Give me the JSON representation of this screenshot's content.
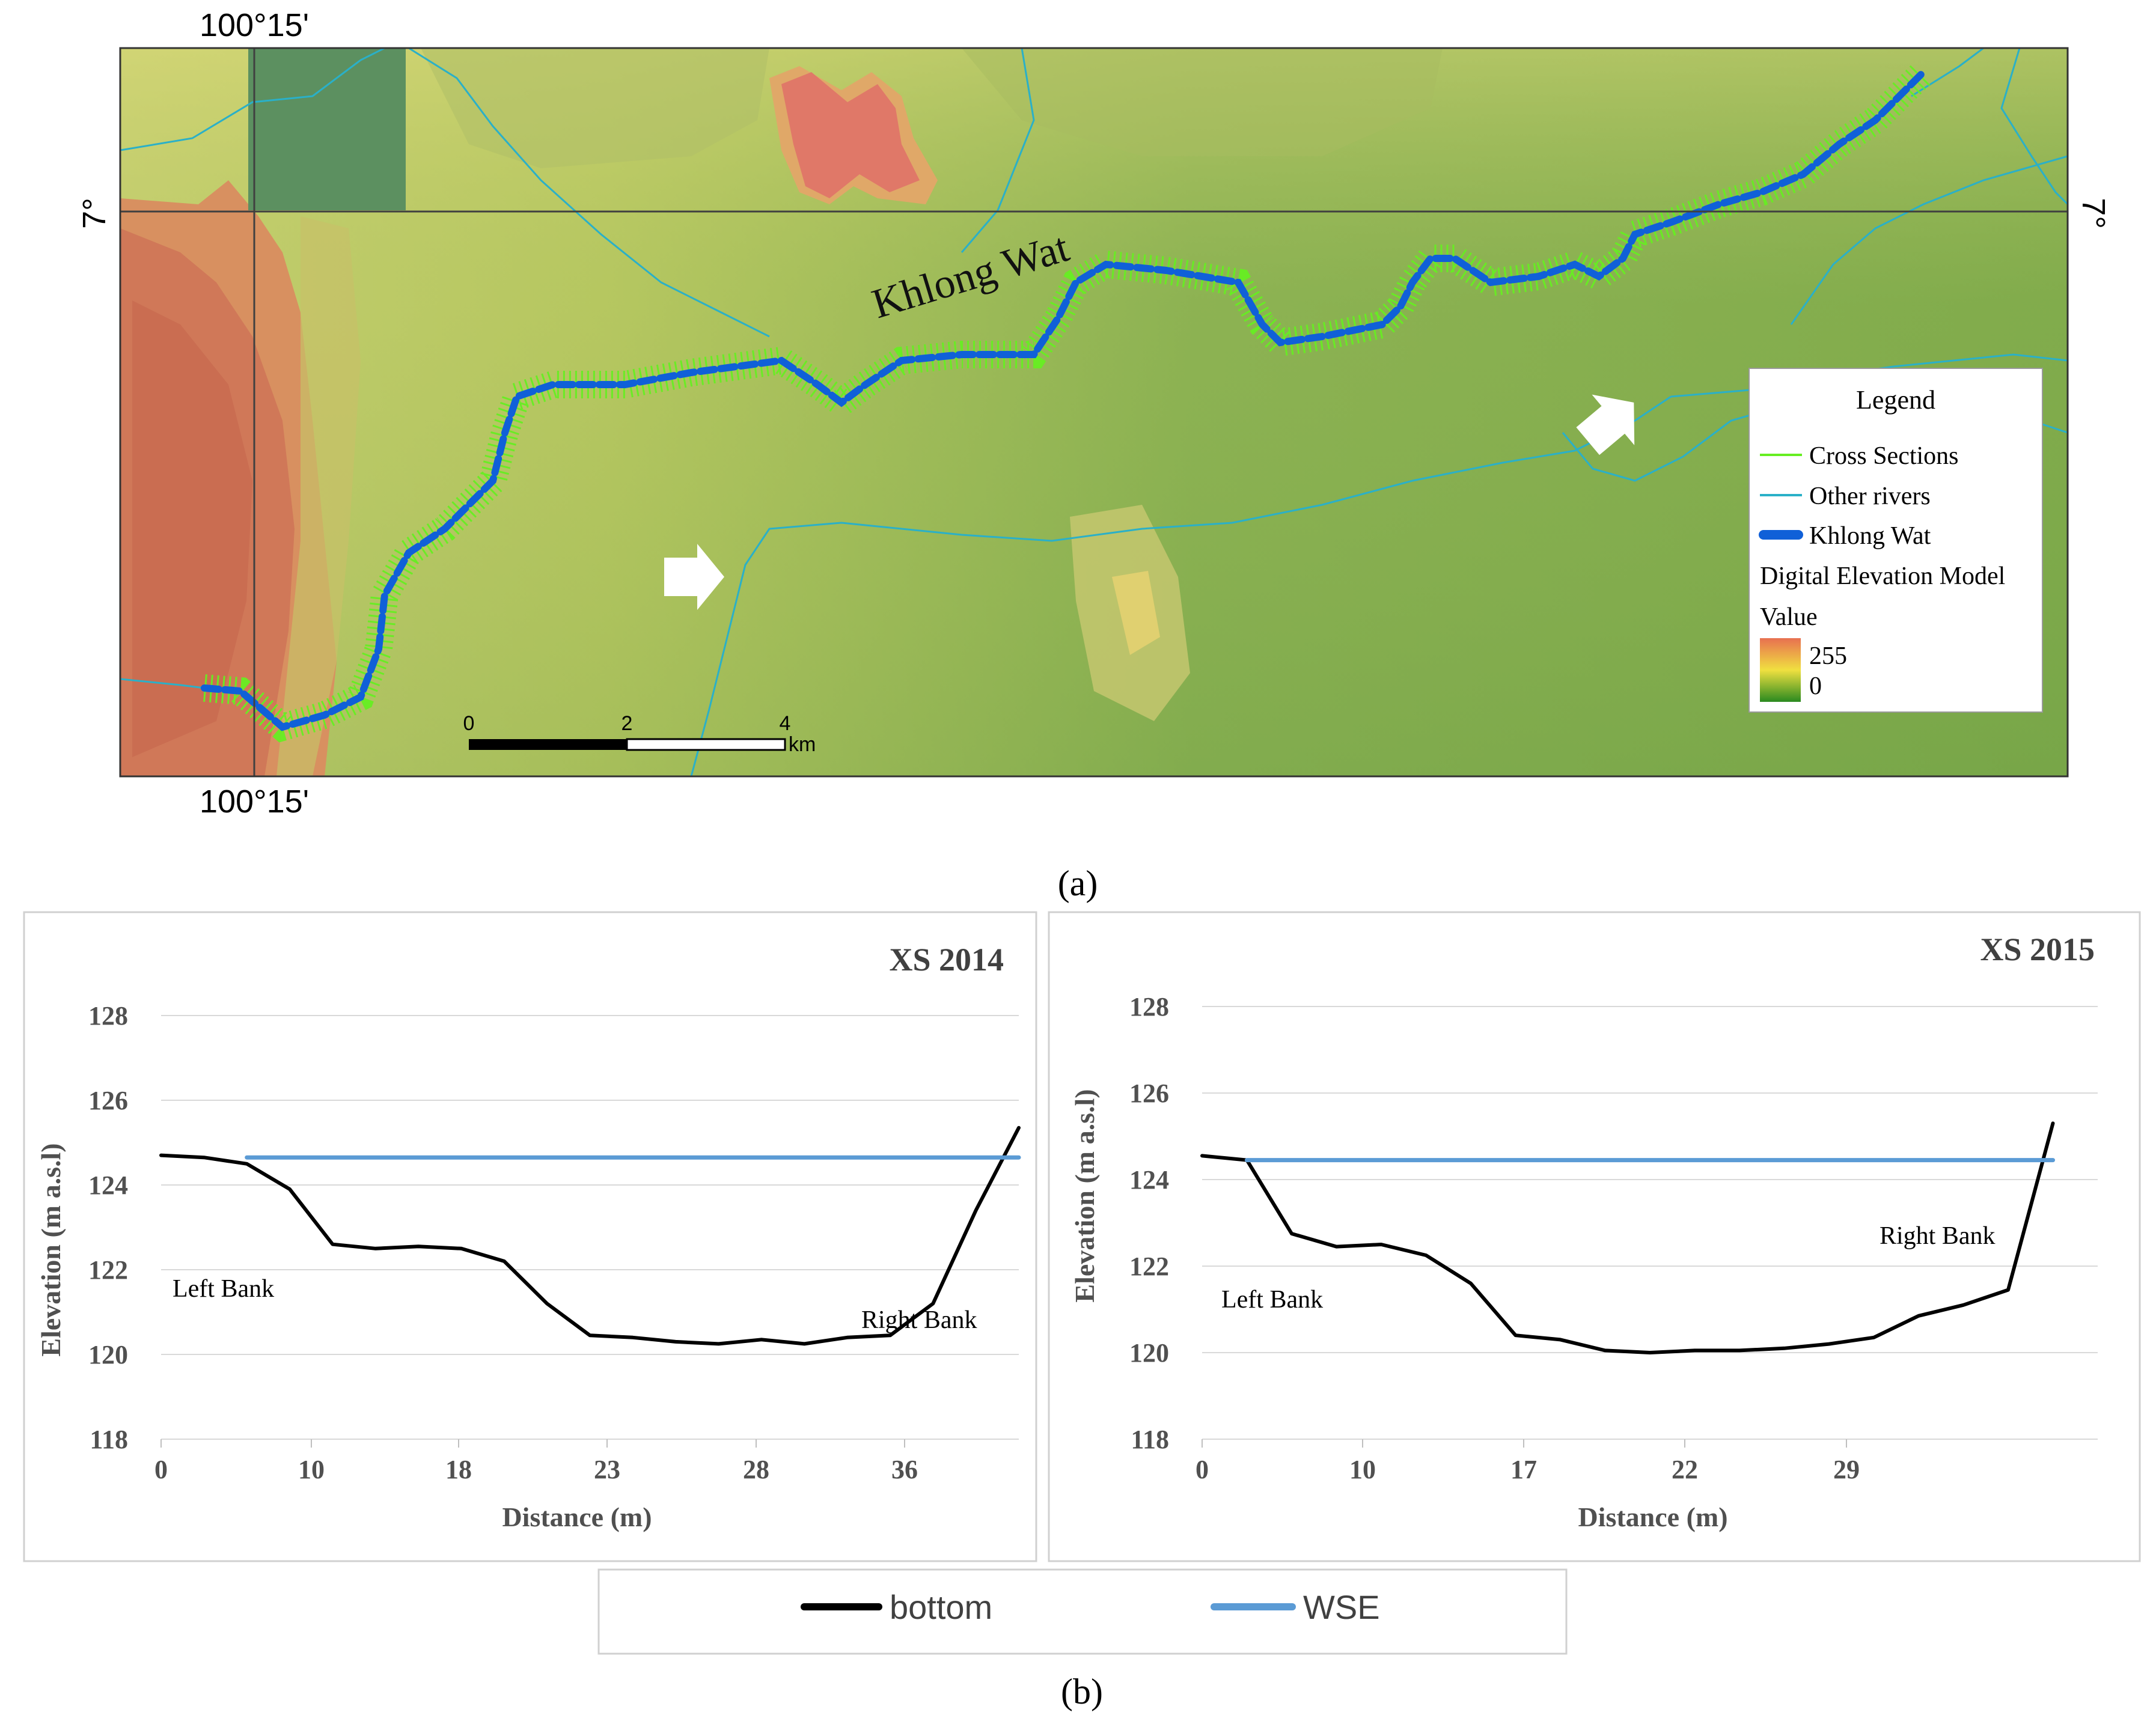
{
  "map": {
    "coord_top": "100°15'",
    "coord_bottom": "100°15'",
    "coord_left": "7°",
    "coord_right": "7°",
    "river_label": "Khlong Wat",
    "scale": {
      "ticks": [
        "0",
        "2",
        "4"
      ],
      "unit": "km"
    },
    "legend": {
      "title": "Legend",
      "items": [
        {
          "label": "Cross Sections",
          "color": "#66ee22",
          "symbol": "thin-line"
        },
        {
          "label": "Other rivers",
          "color": "#2ab0c8",
          "symbol": "thin-line"
        },
        {
          "label": "Khlong Wat",
          "color": "#1060d8",
          "symbol": "thick-line"
        }
      ],
      "dem_title": "Digital Elevation Model",
      "dem_value_label": "Value",
      "dem_max": "255",
      "dem_min": "0",
      "dem_colors": [
        "#e87050",
        "#f0e040",
        "#2a8a20"
      ]
    },
    "caption": "(a)"
  },
  "chart_data": [
    {
      "type": "line",
      "title": "XS 2014",
      "xlabel": "Distance (m)",
      "ylabel": "Elevation (m a.s.l)",
      "x_tick_labels": [
        "0",
        "10",
        "18",
        "23",
        "28",
        "36"
      ],
      "yticks": [
        118,
        120,
        122,
        124,
        126,
        128
      ],
      "ylim": [
        118,
        128
      ],
      "xlim": [
        0,
        40
      ],
      "grid": true,
      "annotations": [
        "Left Bank",
        "Right Bank"
      ],
      "series": [
        {
          "name": "bottom",
          "color": "#000000",
          "x": [
            0,
            2,
            4,
            6,
            8,
            10,
            12,
            14,
            16,
            18,
            20,
            22,
            24,
            26,
            28,
            30,
            32,
            34,
            36,
            38,
            40
          ],
          "values": [
            124.7,
            124.65,
            124.5,
            123.9,
            122.6,
            122.5,
            122.55,
            122.5,
            122.2,
            121.2,
            120.45,
            120.4,
            120.3,
            120.25,
            120.35,
            120.25,
            120.4,
            120.45,
            121.2,
            123.4,
            125.35
          ]
        },
        {
          "name": "WSE",
          "color": "#5b9bd5",
          "x": [
            4,
            40
          ],
          "values": [
            124.65,
            124.65
          ]
        }
      ]
    },
    {
      "type": "line",
      "title": "XS 2015",
      "xlabel": "Distance (m)",
      "ylabel": "Elevation (m a.s.l)",
      "x_tick_labels": [
        "0",
        "10",
        "17",
        "22",
        "29"
      ],
      "yticks": [
        118,
        120,
        122,
        124,
        126,
        128
      ],
      "ylim": [
        118,
        128
      ],
      "xlim": [
        0,
        40
      ],
      "grid": true,
      "annotations": [
        "Left Bank",
        "Right Bank"
      ],
      "series": [
        {
          "name": "bottom",
          "color": "#000000",
          "x": [
            0,
            2,
            4,
            6,
            8,
            10,
            12,
            14,
            16,
            18,
            20,
            22,
            24,
            26,
            28,
            30,
            32,
            34,
            36,
            38
          ],
          "values": [
            124.55,
            124.45,
            122.75,
            122.45,
            122.5,
            122.25,
            121.6,
            120.4,
            120.3,
            120.05,
            120.0,
            120.05,
            120.05,
            120.1,
            120.2,
            120.35,
            120.85,
            121.1,
            121.45,
            125.3
          ]
        },
        {
          "name": "WSE",
          "color": "#5b9bd5",
          "x": [
            2,
            38
          ],
          "values": [
            124.45,
            124.45
          ]
        }
      ]
    }
  ],
  "chart_legend": [
    {
      "label": "bottom",
      "color": "#000000"
    },
    {
      "label": "WSE",
      "color": "#5b9bd5"
    }
  ],
  "caption_b": "(b)"
}
